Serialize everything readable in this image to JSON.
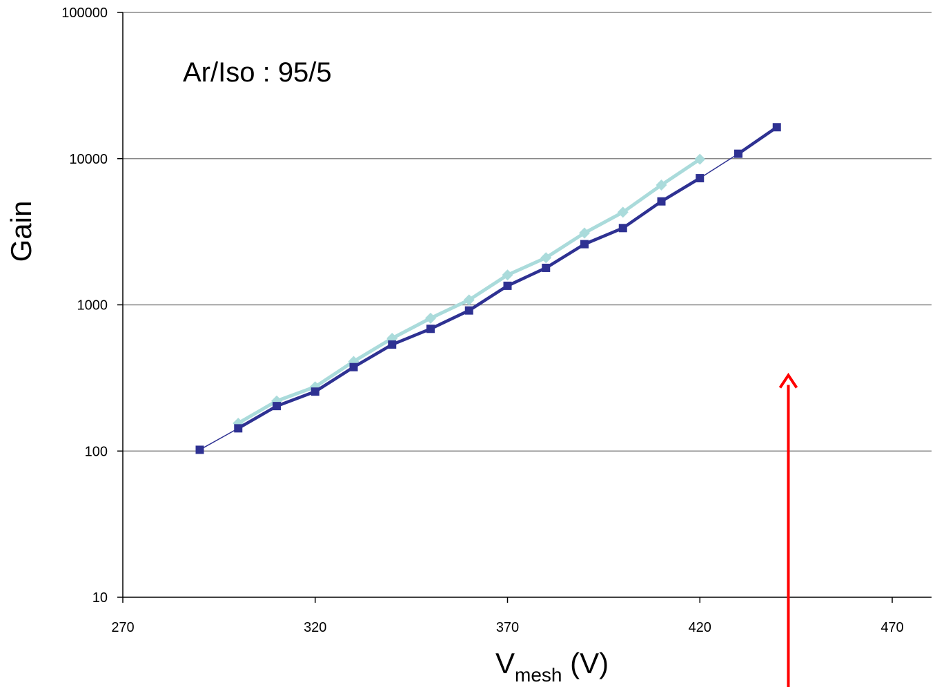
{
  "chart_data": {
    "type": "line",
    "title": "",
    "annotation": "Ar/Iso : 95/5",
    "xlabel": {
      "main": "V",
      "sub": "mesh",
      "suffix": " (V)"
    },
    "ylabel": "Gain",
    "xlim": [
      270,
      475
    ],
    "ylim": [
      10,
      100000
    ],
    "y_scale": "log",
    "x_ticks": [
      "270",
      "320",
      "370",
      "420",
      "470"
    ],
    "x_tick_values": [
      270,
      320,
      370,
      420,
      470
    ],
    "y_ticks": [
      "10",
      "100",
      "1000",
      "10000",
      "100000"
    ],
    "y_tick_values": [
      10,
      100,
      1000,
      10000,
      100000
    ],
    "grid": "horizontal",
    "legend": "none",
    "colors": {
      "light_series": "#aadbdb",
      "dark_series": "#2e3192",
      "arrow": "#ff0000",
      "grid": "#888888"
    },
    "series": [
      {
        "marker": "diamond",
        "x": [
          300,
          310,
          320,
          330,
          340,
          350,
          360,
          370,
          380,
          390,
          400,
          410,
          420
        ],
        "y": [
          155,
          220,
          275,
          410,
          590,
          810,
          1080,
          1600,
          2100,
          3100,
          4300,
          6600,
          9900
        ]
      },
      {
        "marker": "square",
        "x": [
          290,
          300,
          310,
          320,
          330,
          340,
          350,
          360,
          370,
          380,
          390,
          400,
          410,
          420,
          430,
          440
        ],
        "y": [
          102,
          143,
          203,
          255,
          375,
          535,
          685,
          915,
          1350,
          1790,
          2600,
          3350,
          5100,
          7350,
          10800,
          16400
        ]
      }
    ],
    "arrow": {
      "x": 443,
      "y_from": 0.0,
      "y_to": 330
    }
  }
}
